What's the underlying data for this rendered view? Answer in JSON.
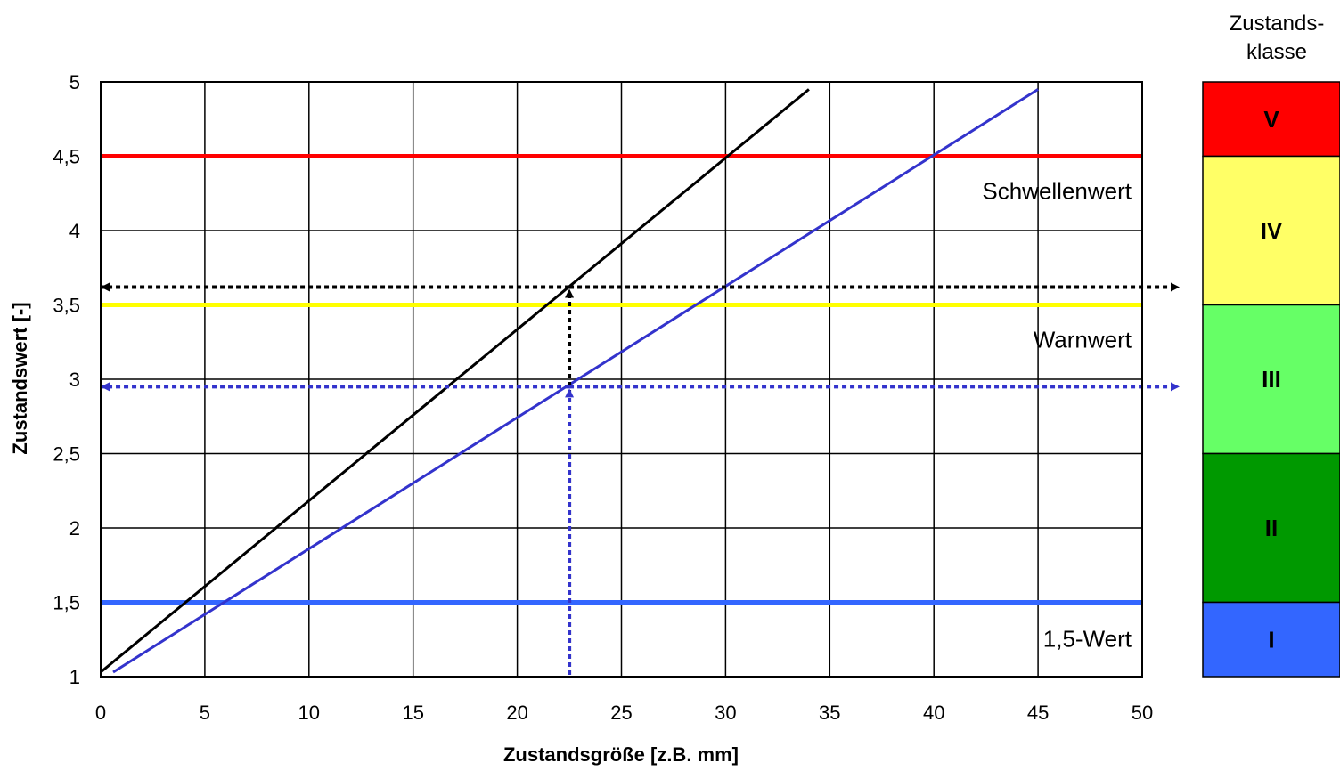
{
  "chart_data": {
    "type": "line",
    "xlabel": "Zustandsgröße [z.B. mm]",
    "ylabel": "Zustandswert [-]",
    "xlim": [
      0,
      50
    ],
    "ylim": [
      1,
      5
    ],
    "x_ticks": [
      0,
      5,
      10,
      15,
      20,
      25,
      30,
      35,
      40,
      45,
      50
    ],
    "y_ticks": [
      1,
      1.5,
      2,
      2.5,
      3,
      3.5,
      4,
      4.5,
      5
    ],
    "x_tick_labels": [
      "0",
      "5",
      "10",
      "15",
      "20",
      "25",
      "30",
      "35",
      "40",
      "45",
      "50"
    ],
    "y_tick_labels": [
      "1",
      "1,5",
      "2",
      "2,5",
      "3",
      "3,5",
      "4",
      "4,5",
      "5"
    ],
    "grid": true,
    "series": [
      {
        "color": "#000000",
        "x": [
          0,
          34
        ],
        "y": [
          1.03,
          4.95
        ]
      },
      {
        "color": "#3333cc",
        "x": [
          0.6,
          45
        ],
        "y": [
          1.03,
          4.95
        ]
      }
    ],
    "thresholds": [
      {
        "label": "Schwellenwert",
        "y": 4.5,
        "color": "#ff0000"
      },
      {
        "label": "Warnwert",
        "y": 3.5,
        "color": "#ffff00"
      },
      {
        "label": "1,5-Wert",
        "y": 1.5,
        "color": "#3366ff"
      }
    ],
    "readings": [
      {
        "x": 22.5,
        "y": 3.62,
        "color": "#000000"
      },
      {
        "x": 22.5,
        "y": 2.95,
        "color": "#3333cc"
      }
    ],
    "classes": {
      "title_lines": [
        "Zustands-",
        "klasse"
      ],
      "bands": [
        {
          "label": "V",
          "from": 4.5,
          "to": 5,
          "color": "#ff0000"
        },
        {
          "label": "IV",
          "from": 3.5,
          "to": 4.5,
          "color": "#ffff66"
        },
        {
          "label": "III",
          "from": 2.5,
          "to": 3.5,
          "color": "#66ff66"
        },
        {
          "label": "II",
          "from": 1.5,
          "to": 2.5,
          "color": "#009900"
        },
        {
          "label": "I",
          "from": 1,
          "to": 1.5,
          "color": "#3366ff"
        }
      ]
    }
  }
}
